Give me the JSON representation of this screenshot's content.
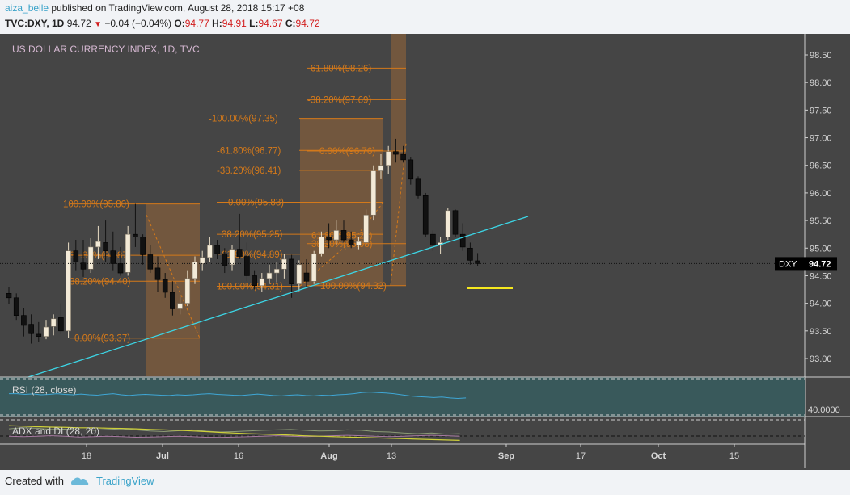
{
  "header": {
    "username": "aiza_belle",
    "published_text": " published on TradingView.com, August 28, 2018 15:17 +08",
    "symbol": "TVC:DXY, 1D",
    "last": "94.72",
    "change": "−0.04 (−0.04%)",
    "o_label": "O:",
    "o_value": "94.77",
    "h_label": "H:",
    "h_value": "94.91",
    "l_label": "L:",
    "l_value": "94.67",
    "c_label": "C:",
    "c_value": "94.72"
  },
  "footer": {
    "created_with": "Created with",
    "brand": "TradingView"
  },
  "colors": {
    "panel_bg": "#454545",
    "rsi_bg": "#39595b",
    "up_candle": "#f3ead7",
    "down_candle": "#111111",
    "fib": "#d4791a",
    "fib_zone": "#7a5a3d",
    "trendline": "#3cd6e6",
    "marker": "#f5e81e",
    "rsi_line": "#3fa7d6",
    "adx_line": "#cfd13a",
    "di_plus": "#8c9b76",
    "di_minus": "#a87aa2"
  },
  "chart_data": {
    "type": "candlestick",
    "title": "US DOLLAR CURRENCY INDEX, 1D, TVC",
    "price_axis_ticks": [
      "98.50",
      "98.00",
      "97.50",
      "97.00",
      "96.50",
      "96.00",
      "95.50",
      "95.00",
      "94.50",
      "94.00",
      "93.50",
      "93.00"
    ],
    "ylim": [
      92.75,
      98.7
    ],
    "x_axis_ticks": [
      "18",
      "Jul",
      "16",
      "Aug",
      "13",
      "Sep",
      "17",
      "Oct",
      "15"
    ],
    "last_price_label": "DXY",
    "last_price": "94.72",
    "candles": [
      {
        "o": 94.18,
        "h": 94.3,
        "l": 93.98,
        "c": 94.1
      },
      {
        "o": 94.1,
        "h": 94.18,
        "l": 93.7,
        "c": 93.78
      },
      {
        "o": 93.78,
        "h": 93.92,
        "l": 93.4,
        "c": 93.6
      },
      {
        "o": 93.62,
        "h": 93.8,
        "l": 93.27,
        "c": 93.45
      },
      {
        "o": 93.44,
        "h": 93.66,
        "l": 93.3,
        "c": 93.4
      },
      {
        "o": 93.4,
        "h": 93.7,
        "l": 93.35,
        "c": 93.57
      },
      {
        "o": 93.58,
        "h": 93.8,
        "l": 93.42,
        "c": 93.72
      },
      {
        "o": 93.74,
        "h": 94.0,
        "l": 93.44,
        "c": 93.5
      },
      {
        "o": 93.5,
        "h": 95.1,
        "l": 93.37,
        "c": 94.95
      },
      {
        "o": 94.95,
        "h": 95.15,
        "l": 94.6,
        "c": 94.75
      },
      {
        "o": 94.73,
        "h": 95.15,
        "l": 94.48,
        "c": 94.62
      },
      {
        "o": 94.62,
        "h": 95.18,
        "l": 94.55,
        "c": 95.02
      },
      {
        "o": 95.02,
        "h": 95.4,
        "l": 94.8,
        "c": 95.12
      },
      {
        "o": 95.1,
        "h": 95.5,
        "l": 94.75,
        "c": 94.95
      },
      {
        "o": 94.95,
        "h": 95.3,
        "l": 94.6,
        "c": 94.72
      },
      {
        "o": 94.72,
        "h": 95.02,
        "l": 94.5,
        "c": 94.55
      },
      {
        "o": 94.56,
        "h": 95.4,
        "l": 94.5,
        "c": 95.25
      },
      {
        "o": 95.25,
        "h": 95.8,
        "l": 95.02,
        "c": 95.2
      },
      {
        "o": 95.2,
        "h": 95.25,
        "l": 94.7,
        "c": 94.88
      },
      {
        "o": 94.88,
        "h": 95.05,
        "l": 94.55,
        "c": 94.62
      },
      {
        "o": 94.64,
        "h": 94.85,
        "l": 94.2,
        "c": 94.43
      },
      {
        "o": 94.43,
        "h": 94.55,
        "l": 94.1,
        "c": 94.2
      },
      {
        "o": 94.2,
        "h": 94.4,
        "l": 93.78,
        "c": 93.9
      },
      {
        "o": 93.9,
        "h": 94.15,
        "l": 93.8,
        "c": 94.0
      },
      {
        "o": 94.0,
        "h": 94.6,
        "l": 93.95,
        "c": 94.45
      },
      {
        "o": 94.45,
        "h": 94.85,
        "l": 94.35,
        "c": 94.75
      },
      {
        "o": 94.72,
        "h": 94.95,
        "l": 94.6,
        "c": 94.83
      },
      {
        "o": 94.83,
        "h": 95.2,
        "l": 94.75,
        "c": 95.05
      },
      {
        "o": 95.05,
        "h": 95.15,
        "l": 94.8,
        "c": 94.9
      },
      {
        "o": 94.9,
        "h": 95.0,
        "l": 94.55,
        "c": 94.68
      },
      {
        "o": 94.7,
        "h": 95.05,
        "l": 94.6,
        "c": 94.98
      },
      {
        "o": 94.98,
        "h": 95.62,
        "l": 94.8,
        "c": 94.85
      },
      {
        "o": 94.85,
        "h": 95.1,
        "l": 94.4,
        "c": 94.5
      },
      {
        "o": 94.5,
        "h": 94.6,
        "l": 94.25,
        "c": 94.32
      },
      {
        "o": 94.32,
        "h": 94.55,
        "l": 94.2,
        "c": 94.45
      },
      {
        "o": 94.45,
        "h": 94.7,
        "l": 94.35,
        "c": 94.55
      },
      {
        "o": 94.55,
        "h": 94.75,
        "l": 94.38,
        "c": 94.62
      },
      {
        "o": 94.62,
        "h": 94.9,
        "l": 94.45,
        "c": 94.8
      },
      {
        "o": 94.8,
        "h": 94.88,
        "l": 94.1,
        "c": 94.35
      },
      {
        "o": 94.35,
        "h": 94.78,
        "l": 94.22,
        "c": 94.7
      },
      {
        "o": 94.55,
        "h": 94.8,
        "l": 94.3,
        "c": 94.4
      },
      {
        "o": 94.4,
        "h": 94.95,
        "l": 94.35,
        "c": 94.9
      },
      {
        "o": 94.9,
        "h": 95.3,
        "l": 94.85,
        "c": 95.2
      },
      {
        "o": 95.2,
        "h": 95.45,
        "l": 95.0,
        "c": 95.15
      },
      {
        "o": 95.15,
        "h": 95.5,
        "l": 95.05,
        "c": 95.32
      },
      {
        "o": 95.32,
        "h": 95.5,
        "l": 95.1,
        "c": 95.15
      },
      {
        "o": 95.15,
        "h": 95.3,
        "l": 95.0,
        "c": 95.05
      },
      {
        "o": 95.05,
        "h": 95.2,
        "l": 94.98,
        "c": 95.12
      },
      {
        "o": 95.1,
        "h": 95.7,
        "l": 95.05,
        "c": 95.6
      },
      {
        "o": 95.6,
        "h": 96.5,
        "l": 95.5,
        "c": 96.4
      },
      {
        "o": 96.4,
        "h": 96.7,
        "l": 96.25,
        "c": 96.5
      },
      {
        "o": 96.5,
        "h": 96.85,
        "l": 96.35,
        "c": 96.75
      },
      {
        "o": 96.75,
        "h": 96.98,
        "l": 96.55,
        "c": 96.7
      },
      {
        "o": 96.7,
        "h": 96.85,
        "l": 96.55,
        "c": 96.6
      },
      {
        "o": 96.6,
        "h": 96.65,
        "l": 96.15,
        "c": 96.25
      },
      {
        "o": 96.25,
        "h": 96.3,
        "l": 95.9,
        "c": 95.95
      },
      {
        "o": 95.95,
        "h": 96.0,
        "l": 95.2,
        "c": 95.25
      },
      {
        "o": 95.25,
        "h": 95.32,
        "l": 94.95,
        "c": 95.05
      },
      {
        "o": 95.05,
        "h": 95.2,
        "l": 94.9,
        "c": 95.1
      },
      {
        "o": 95.2,
        "h": 95.72,
        "l": 95.15,
        "c": 95.68
      },
      {
        "o": 95.68,
        "h": 95.7,
        "l": 95.2,
        "c": 95.25
      },
      {
        "o": 95.25,
        "h": 95.45,
        "l": 94.95,
        "c": 95.02
      },
      {
        "o": 95.0,
        "h": 95.1,
        "l": 94.7,
        "c": 94.78
      },
      {
        "o": 94.77,
        "h": 94.91,
        "l": 94.67,
        "c": 94.72
      }
    ],
    "fib_labels": [
      "-61.80%(98.26)",
      "-38.20%(97.69)",
      "-100.00%(97.35)",
      "-61.80%(96.77)",
      "0.00%(96.76)",
      "-38.20%(96.41)",
      "100.00%(95.80)",
      "0.00%(95.83)",
      "38.20%(95.08)",
      "38.20%(95.25)",
      "61.80%(95.23)",
      "61.80%(94.87)",
      "61.80%(94.89)",
      "38.20%(94.40)",
      "100.00%(94.31)",
      "100.00%(94.32)",
      "0.00%(93.37)"
    ],
    "trendline": {
      "from": [
        0,
        92.55
      ],
      "to": [
        69,
        95.58
      ]
    },
    "marker_level": 94.28,
    "rsi": {
      "label": "RSI (28, close)",
      "value_label": "40.0000",
      "values": [
        0.55,
        0.55,
        0.52,
        0.54,
        0.5,
        0.52,
        0.55,
        0.52,
        0.5,
        0.53,
        0.5,
        0.48,
        0.52,
        0.55,
        0.5,
        0.47,
        0.5,
        0.52,
        0.5,
        0.48,
        0.47,
        0.5,
        0.48,
        0.5,
        0.53,
        0.55,
        0.52,
        0.5,
        0.48,
        0.47,
        0.5,
        0.53,
        0.5,
        0.47,
        0.45,
        0.48,
        0.5,
        0.47,
        0.45,
        0.48,
        0.47,
        0.5,
        0.52,
        0.55,
        0.6,
        0.62,
        0.6,
        0.58,
        0.55,
        0.5,
        0.45,
        0.42,
        0.4,
        0.38,
        0.4,
        0.36,
        0.34,
        0.36
      ]
    },
    "adx": {
      "label": "ADX and DI (28, 20)",
      "adx": [
        0.2,
        0.22,
        0.25,
        0.27,
        0.28,
        0.3,
        0.3,
        0.32,
        0.33,
        0.35,
        0.38,
        0.4,
        0.42,
        0.45,
        0.48,
        0.52,
        0.55,
        0.58,
        0.6,
        0.62,
        0.65,
        0.68,
        0.7,
        0.72,
        0.74,
        0.76,
        0.78,
        0.8,
        0.82,
        0.84,
        0.86,
        0.88,
        0.9
      ],
      "di_plus": [
        0.35,
        0.3,
        0.32,
        0.38,
        0.36,
        0.4,
        0.42,
        0.38,
        0.35,
        0.4,
        0.45,
        0.48,
        0.44,
        0.4,
        0.46,
        0.5,
        0.48,
        0.45,
        0.42,
        0.4,
        0.38,
        0.42,
        0.45,
        0.44,
        0.4,
        0.42,
        0.48,
        0.5,
        0.55,
        0.58,
        0.55,
        0.6,
        0.58
      ],
      "di_minus": [
        0.7,
        0.72,
        0.7,
        0.68,
        0.7,
        0.74,
        0.72,
        0.7,
        0.72,
        0.75,
        0.74,
        0.72,
        0.7,
        0.72,
        0.75,
        0.76,
        0.74,
        0.72,
        0.7,
        0.68,
        0.7,
        0.72,
        0.7,
        0.68,
        0.66,
        0.68,
        0.7,
        0.72,
        0.7,
        0.68,
        0.66,
        0.68,
        0.7
      ]
    }
  }
}
